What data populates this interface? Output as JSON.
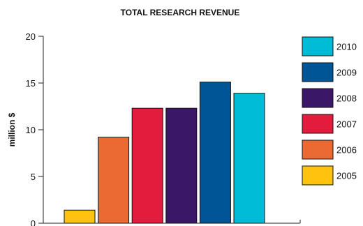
{
  "chart_data": {
    "type": "bar",
    "title": "TOTAL RESEARCH REVENUE",
    "ylabel": "million $",
    "xlabel": "",
    "ylim": [
      0,
      20
    ],
    "yticks": [
      0,
      5,
      10,
      15,
      20
    ],
    "ytick_labels": [
      "0",
      "5",
      "10",
      "15",
      "20"
    ],
    "categories": [
      "2005",
      "2006",
      "2007",
      "2008",
      "2009",
      "2010"
    ],
    "values": [
      1.4,
      9.2,
      12.3,
      12.3,
      15.1,
      13.9
    ],
    "colors": [
      "#ffc20e",
      "#eb6a32",
      "#e31b3c",
      "#3b1768",
      "#005596",
      "#00bcd6"
    ],
    "legend": {
      "placement": "right",
      "order": [
        "2010",
        "2009",
        "2008",
        "2007",
        "2006",
        "2005"
      ]
    },
    "grid": false
  }
}
